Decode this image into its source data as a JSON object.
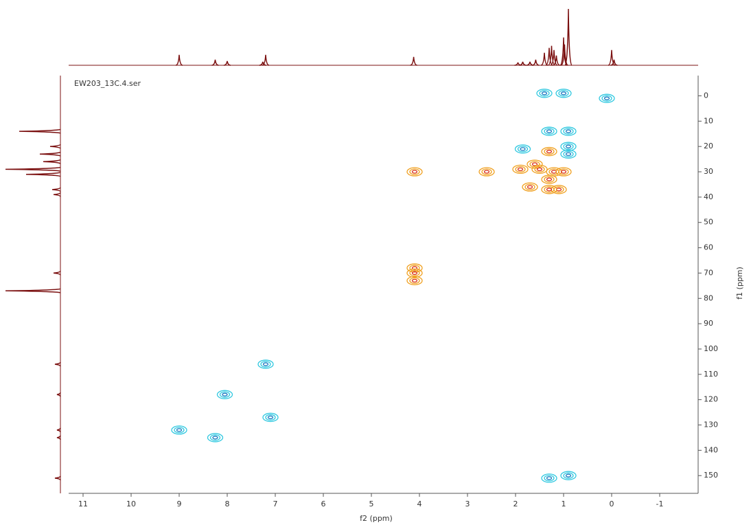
{
  "chart_data": [
    {
      "type": "scatter",
      "title": "EW203_13C.4.ser",
      "xlabel": "f2 (ppm)",
      "ylabel": "f1 (ppm)",
      "xlim": [
        11.3,
        -1.8
      ],
      "ylim": [
        -8,
        157
      ],
      "xticks": [
        11,
        10,
        9,
        8,
        7,
        6,
        5,
        4,
        3,
        2,
        1,
        0,
        -1
      ],
      "yticks": [
        0,
        10,
        20,
        30,
        40,
        50,
        60,
        70,
        80,
        90,
        100,
        110,
        120,
        130,
        140,
        150
      ],
      "series": [
        {
          "color": "#f0a020",
          "x": [
            4.1,
            4.1,
            4.1,
            4.1,
            1.9,
            1.6,
            1.3,
            1.2,
            1.0,
            1.3,
            1.5,
            1.1,
            1.7,
            2.6,
            1.3
          ],
          "y": [
            68,
            70,
            73,
            30,
            29,
            27,
            22,
            30,
            30,
            33,
            29,
            37,
            36,
            30,
            37
          ]
        },
        {
          "color": "#30c8e0",
          "x": [
            0.9,
            0.9,
            0.9,
            0.1,
            1.3,
            1.85,
            7.2,
            8.05,
            9.0,
            8.25,
            7.1,
            1.3,
            0.9,
            1.4,
            1.0
          ],
          "y": [
            14,
            20,
            23,
            1,
            14,
            21,
            106,
            118,
            132,
            135,
            127,
            151,
            150,
            -1,
            -1
          ]
        }
      ]
    },
    {
      "type": "spectrum",
      "orientation": "top",
      "color": "#7b1010",
      "x": [
        9.0,
        8.25,
        8.0,
        7.26,
        7.2,
        4.12,
        1.95,
        1.85,
        1.7,
        1.58,
        1.4,
        1.3,
        1.25,
        1.2,
        1.15,
        1.0,
        0.98,
        0.9,
        0.0,
        -0.05
      ],
      "values": [
        15,
        8,
        6,
        5,
        15,
        12,
        4,
        5,
        5,
        8,
        18,
        25,
        28,
        22,
        14,
        40,
        30,
        81,
        22,
        8
      ]
    },
    {
      "type": "spectrum",
      "orientation": "left",
      "color": "#7b1010",
      "x": [
        14,
        20,
        23,
        26,
        29,
        31,
        37,
        39,
        70,
        77,
        106,
        118,
        132,
        135,
        151
      ],
      "values": [
        60,
        15,
        30,
        25,
        80,
        50,
        12,
        10,
        10,
        80,
        8,
        5,
        5,
        5,
        8
      ]
    }
  ]
}
